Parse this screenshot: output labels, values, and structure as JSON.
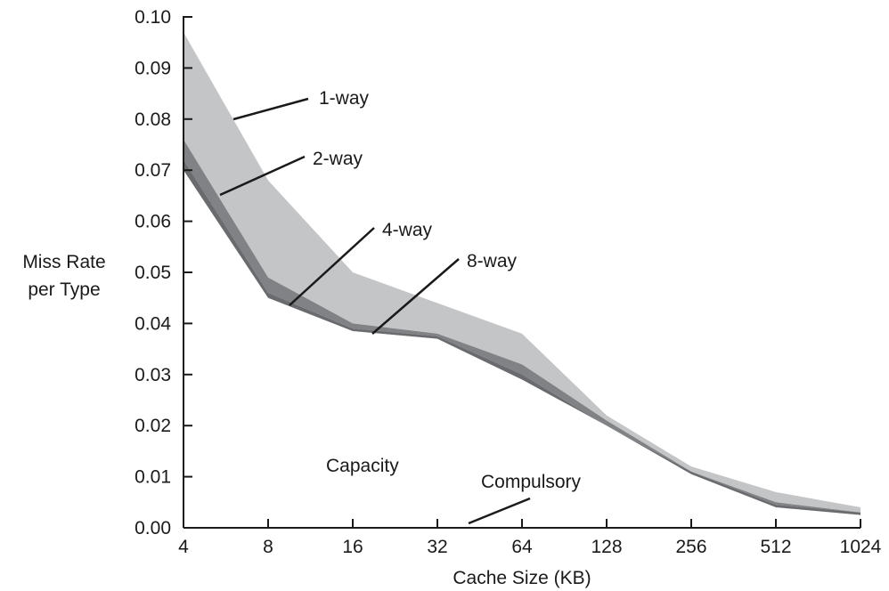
{
  "chart_data": {
    "type": "area",
    "xlabel": "Cache Size (KB)",
    "ylabel_line1": "Miss Rate",
    "ylabel_line2": "per Type",
    "x": [
      "4",
      "8",
      "16",
      "32",
      "64",
      "128",
      "256",
      "512",
      "1024"
    ],
    "y_ticks": [
      "0.00",
      "0.01",
      "0.02",
      "0.03",
      "0.04",
      "0.05",
      "0.06",
      "0.07",
      "0.08",
      "0.09",
      "0.10"
    ],
    "ylim": [
      0,
      0.1
    ],
    "grid": false,
    "series": [
      {
        "name": "1-way",
        "values": [
          0.097,
          0.068,
          0.05,
          0.044,
          0.038,
          0.022,
          0.012,
          0.007,
          0.004
        ]
      },
      {
        "name": "2-way",
        "values": [
          0.076,
          0.049,
          0.04,
          0.038,
          0.032,
          0.021,
          0.011,
          0.005,
          0.003
        ]
      },
      {
        "name": "4-way",
        "values": [
          0.072,
          0.046,
          0.039,
          0.0375,
          0.03,
          0.02,
          0.011,
          0.0045,
          0.003
        ]
      },
      {
        "name": "8-way",
        "values": [
          0.07,
          0.045,
          0.0385,
          0.037,
          0.029,
          0.02,
          0.0105,
          0.004,
          0.0025
        ]
      },
      {
        "name": "Compulsory",
        "values": [
          0.0001,
          0.0001,
          0.0001,
          0.0001,
          0.0001,
          0.0001,
          0.0001,
          0.0001,
          0.0001
        ]
      }
    ],
    "region_labels": [
      "Capacity"
    ],
    "colors": {
      "one_way": "#c4c5c7",
      "two_way": "#808285",
      "four_way": "#696b6e",
      "eight_way": "#4f5154",
      "axis": "#1a1a1a"
    }
  }
}
